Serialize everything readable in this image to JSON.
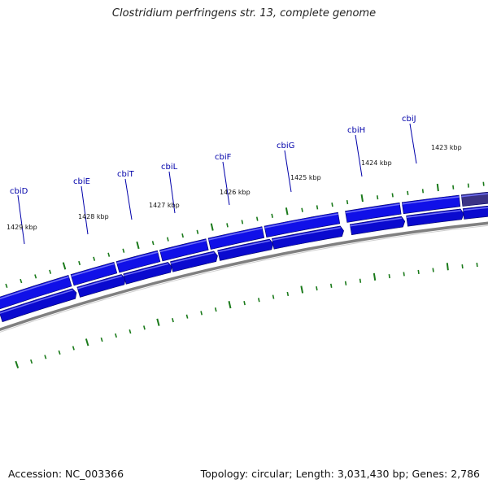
{
  "title": "Clostridium perfringens str. 13, complete genome",
  "footer": {
    "accession": "Accession: NC_003366",
    "summary": "Topology: circular; Length: 3,031,430 bp; Genes: 2,786"
  },
  "colors": {
    "gene_forward": "#1010e8",
    "gene_reverse": "#0a0acf",
    "gene_highlight": "#3b3385",
    "backbone": "#808080",
    "tick": "#1a7a1a",
    "label": "#0000aa"
  },
  "genes": [
    {
      "name": "cbiD"
    },
    {
      "name": "cbiE"
    },
    {
      "name": "cbiT"
    },
    {
      "name": "cbiL"
    },
    {
      "name": "cbiF"
    },
    {
      "name": "cbiG"
    },
    {
      "name": "cbiH"
    },
    {
      "name": "cbiJ"
    }
  ],
  "kbp_labels": [
    "1429 kbp",
    "1428 kbp",
    "1427 kbp",
    "1426 kbp",
    "1425 kbp",
    "1424 kbp",
    "1423 kbp"
  ]
}
